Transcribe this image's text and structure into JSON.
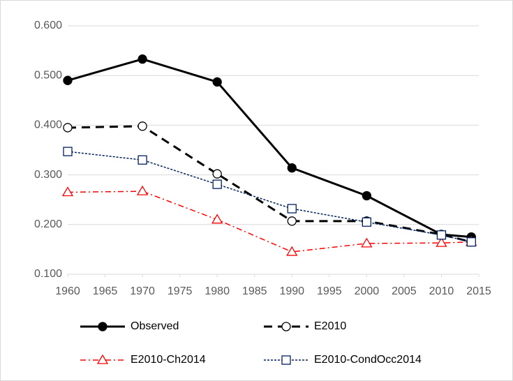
{
  "chart_data": {
    "type": "line",
    "x": [
      1960,
      1970,
      1980,
      1990,
      2000,
      2010,
      2014
    ],
    "xlim": [
      1960,
      2015
    ],
    "xticks": [
      1960,
      1965,
      1970,
      1975,
      1980,
      1985,
      1990,
      1995,
      2000,
      2005,
      2010,
      2015
    ],
    "ylim": [
      0.1,
      0.6
    ],
    "yticks": [
      {
        "value": 0.1,
        "label": "0.100"
      },
      {
        "value": 0.2,
        "label": "0.200"
      },
      {
        "value": 0.3,
        "label": "0.300"
      },
      {
        "value": 0.4,
        "label": "0.400"
      },
      {
        "value": 0.5,
        "label": "0.500"
      },
      {
        "value": 0.6,
        "label": "0.600"
      }
    ],
    "grid": true,
    "legend": "bottom",
    "series": [
      {
        "name": "Observed",
        "color": "#000000",
        "dash": "solid",
        "marker": "circle",
        "marker_fill": "#000000",
        "values": [
          0.49,
          0.533,
          0.487,
          0.314,
          0.258,
          0.18,
          0.175
        ]
      },
      {
        "name": "E2010",
        "color": "#000000",
        "dash": "long-dash",
        "marker": "circle",
        "marker_fill": "#ffffff",
        "values": [
          0.395,
          0.398,
          0.302,
          0.207,
          0.207,
          0.18,
          0.165
        ]
      },
      {
        "name": "E2010-Ch2014",
        "color": "#ff0000",
        "dash": "dash-dot",
        "marker": "triangle",
        "marker_fill": "#ffffff",
        "values": [
          0.265,
          0.267,
          0.21,
          0.145,
          0.162,
          0.163,
          0.165
        ]
      },
      {
        "name": "E2010-CondOcc2014",
        "color": "#002060",
        "dash": "dot",
        "marker": "square",
        "marker_fill": "#ffffff",
        "values": [
          0.347,
          0.33,
          0.281,
          0.232,
          0.205,
          0.179,
          0.165
        ]
      }
    ]
  }
}
